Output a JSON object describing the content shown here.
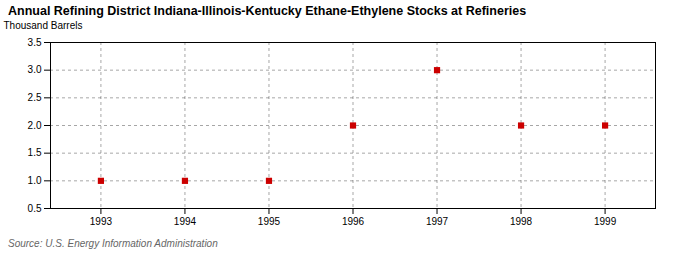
{
  "chart_data": {
    "type": "scatter",
    "title": "Annual Refining District Indiana-Illinois-Kentucky Ethane-Ethylene Stocks at Refineries",
    "ylabel": "Thousand Barrels",
    "source": "Source: U.S. Energy Information Administration",
    "x": [
      1993,
      1994,
      1995,
      1996,
      1997,
      1998,
      1999
    ],
    "values": [
      1.0,
      1.0,
      1.0,
      2.0,
      3.0,
      2.0,
      2.0
    ],
    "color": "#cc0000",
    "marker": "square",
    "xlim": [
      1992.4,
      1999.6
    ],
    "xticks": [
      1993,
      1994,
      1995,
      1996,
      1997,
      1998,
      1999
    ],
    "ylim": [
      0.5,
      3.5
    ],
    "yticks": [
      0.5,
      {
        "value": 1.0,
        "label": "1.0"
      },
      1.5,
      {
        "value": 2.0,
        "label": "2.0"
      },
      2.5,
      {
        "value": 3.0,
        "label": "3.0"
      },
      3.5
    ],
    "grid": true
  }
}
